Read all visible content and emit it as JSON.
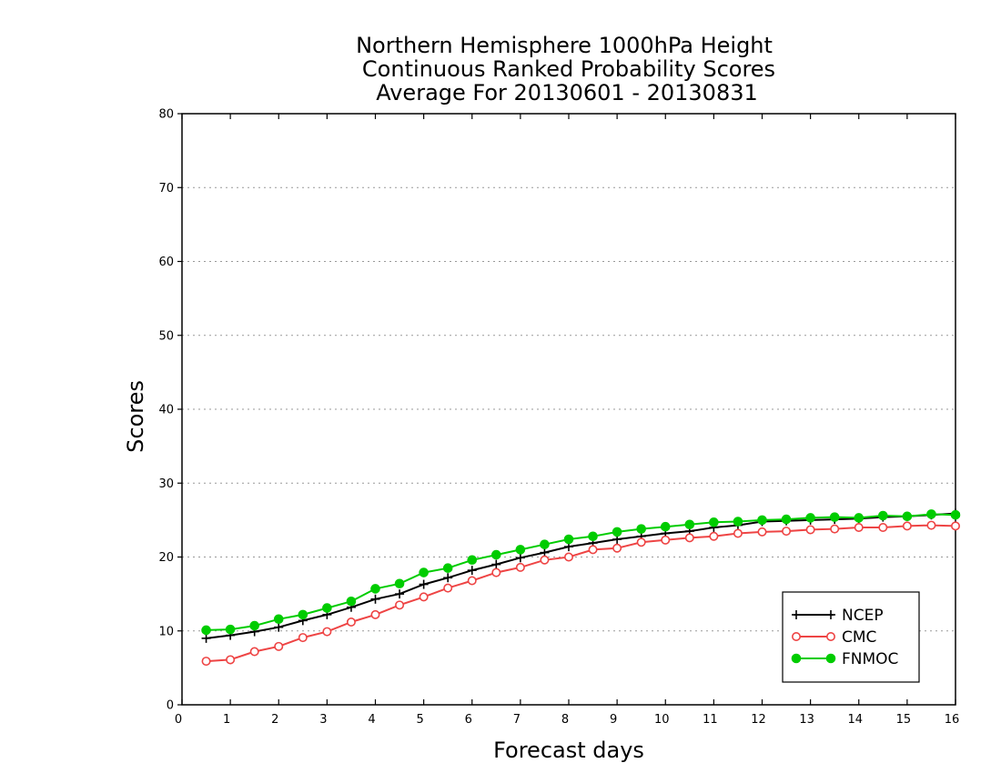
{
  "chart_data": {
    "type": "line",
    "title_lines": [
      "Northern Hemisphere 1000hPa Height",
      "Continuous Ranked Probability Scores",
      "Average For 20130601 - 20130831"
    ],
    "xlabel": "Forecast days",
    "ylabel": "Scores",
    "xlim": [
      0,
      16
    ],
    "ylim": [
      0,
      80
    ],
    "x_ticks": [
      0,
      1,
      2,
      3,
      4,
      5,
      6,
      7,
      8,
      9,
      10,
      11,
      12,
      13,
      14,
      15,
      16
    ],
    "y_ticks": [
      0,
      10,
      20,
      30,
      40,
      50,
      60,
      70,
      80
    ],
    "grid": "horizontal-dotted",
    "legend_position": "bottom-right",
    "x": [
      0.5,
      1,
      1.5,
      2,
      2.5,
      3,
      3.5,
      4,
      4.5,
      5,
      5.5,
      6,
      6.5,
      7,
      7.5,
      8,
      8.5,
      9,
      9.5,
      10,
      10.5,
      11,
      11.5,
      12,
      12.5,
      13,
      13.5,
      14,
      14.5,
      15,
      15.5,
      16
    ],
    "series": [
      {
        "name": "NCEP",
        "color": "#000000",
        "marker": "plus",
        "values": [
          9.0,
          9.4,
          9.9,
          10.5,
          11.4,
          12.2,
          13.2,
          14.3,
          15.0,
          16.3,
          17.2,
          18.2,
          19.0,
          19.9,
          20.6,
          21.4,
          21.9,
          22.4,
          22.8,
          23.2,
          23.5,
          24.0,
          24.3,
          24.8,
          24.9,
          25.0,
          25.1,
          25.2,
          25.4,
          25.5,
          25.7,
          25.9
        ]
      },
      {
        "name": "CMC",
        "color": "#ee4444",
        "marker": "open-circle",
        "values": [
          5.9,
          6.1,
          7.2,
          7.9,
          9.1,
          9.9,
          11.2,
          12.2,
          13.5,
          14.6,
          15.8,
          16.8,
          17.9,
          18.6,
          19.6,
          20.0,
          21.0,
          21.2,
          22.0,
          22.3,
          22.6,
          22.8,
          23.2,
          23.4,
          23.5,
          23.7,
          23.8,
          24.0,
          24.0,
          24.2,
          24.3,
          24.2
        ]
      },
      {
        "name": "FNMOC",
        "color": "#00cc00",
        "marker": "filled-circle",
        "values": [
          10.1,
          10.2,
          10.7,
          11.6,
          12.2,
          13.1,
          14.0,
          15.7,
          16.4,
          17.9,
          18.5,
          19.6,
          20.3,
          21.0,
          21.7,
          22.4,
          22.8,
          23.4,
          23.8,
          24.1,
          24.4,
          24.7,
          24.8,
          25.0,
          25.1,
          25.3,
          25.4,
          25.3,
          25.6,
          25.5,
          25.8,
          25.7
        ]
      }
    ]
  }
}
